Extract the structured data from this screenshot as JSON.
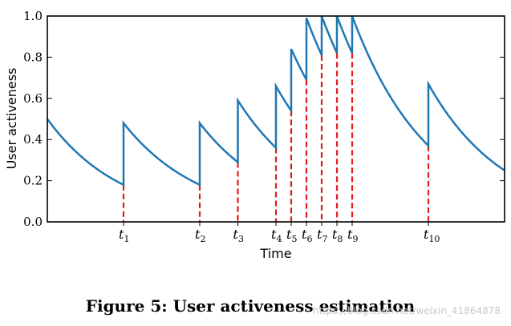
{
  "chart_data": {
    "type": "line",
    "xlabel": "Time",
    "ylabel": "User activeness",
    "ylim": [
      0.0,
      1.0
    ],
    "yticks": [
      "0.0",
      "0.2",
      "0.4",
      "0.6",
      "0.8",
      "1.0"
    ],
    "grid": false,
    "series": [
      {
        "color": "#1f77b4",
        "points": [
          [
            0.0,
            0.5
          ],
          [
            1.0,
            0.18
          ],
          [
            1.0,
            0.48
          ],
          [
            2.0,
            0.18
          ],
          [
            2.0,
            0.48
          ],
          [
            2.5,
            0.29
          ],
          [
            2.5,
            0.59
          ],
          [
            3.0,
            0.36
          ],
          [
            3.0,
            0.66
          ],
          [
            3.2,
            0.54
          ],
          [
            3.2,
            0.84
          ],
          [
            3.4,
            0.69
          ],
          [
            3.4,
            0.99
          ],
          [
            3.6,
            0.81
          ],
          [
            3.6,
            1.0
          ],
          [
            3.8,
            0.82
          ],
          [
            3.8,
            1.0
          ],
          [
            4.0,
            0.82
          ],
          [
            4.0,
            1.0
          ],
          [
            5.0,
            0.37
          ],
          [
            5.0,
            0.67
          ],
          [
            6.0,
            0.25
          ]
        ]
      }
    ],
    "events": [
      {
        "x": 1.0,
        "y": 0.18,
        "label": "t",
        "sub": "1"
      },
      {
        "x": 2.0,
        "y": 0.18,
        "label": "t",
        "sub": "2"
      },
      {
        "x": 2.5,
        "y": 0.29,
        "label": "t",
        "sub": "3"
      },
      {
        "x": 3.0,
        "y": 0.36,
        "label": "t",
        "sub": "4"
      },
      {
        "x": 3.2,
        "y": 0.54,
        "label": "t",
        "sub": "5"
      },
      {
        "x": 3.4,
        "y": 0.69,
        "label": "t",
        "sub": "6"
      },
      {
        "x": 3.6,
        "y": 0.81,
        "label": "t",
        "sub": "7"
      },
      {
        "x": 3.8,
        "y": 0.82,
        "label": "t",
        "sub": "8"
      },
      {
        "x": 4.0,
        "y": 0.82,
        "label": "t",
        "sub": "9"
      },
      {
        "x": 5.0,
        "y": 0.37,
        "label": "t",
        "sub": "10"
      }
    ],
    "event_color": "#e31a1c"
  },
  "caption": "Figure 5: User activeness estimation",
  "watermark": "https://blog.csdn.net/weixin_41864878"
}
